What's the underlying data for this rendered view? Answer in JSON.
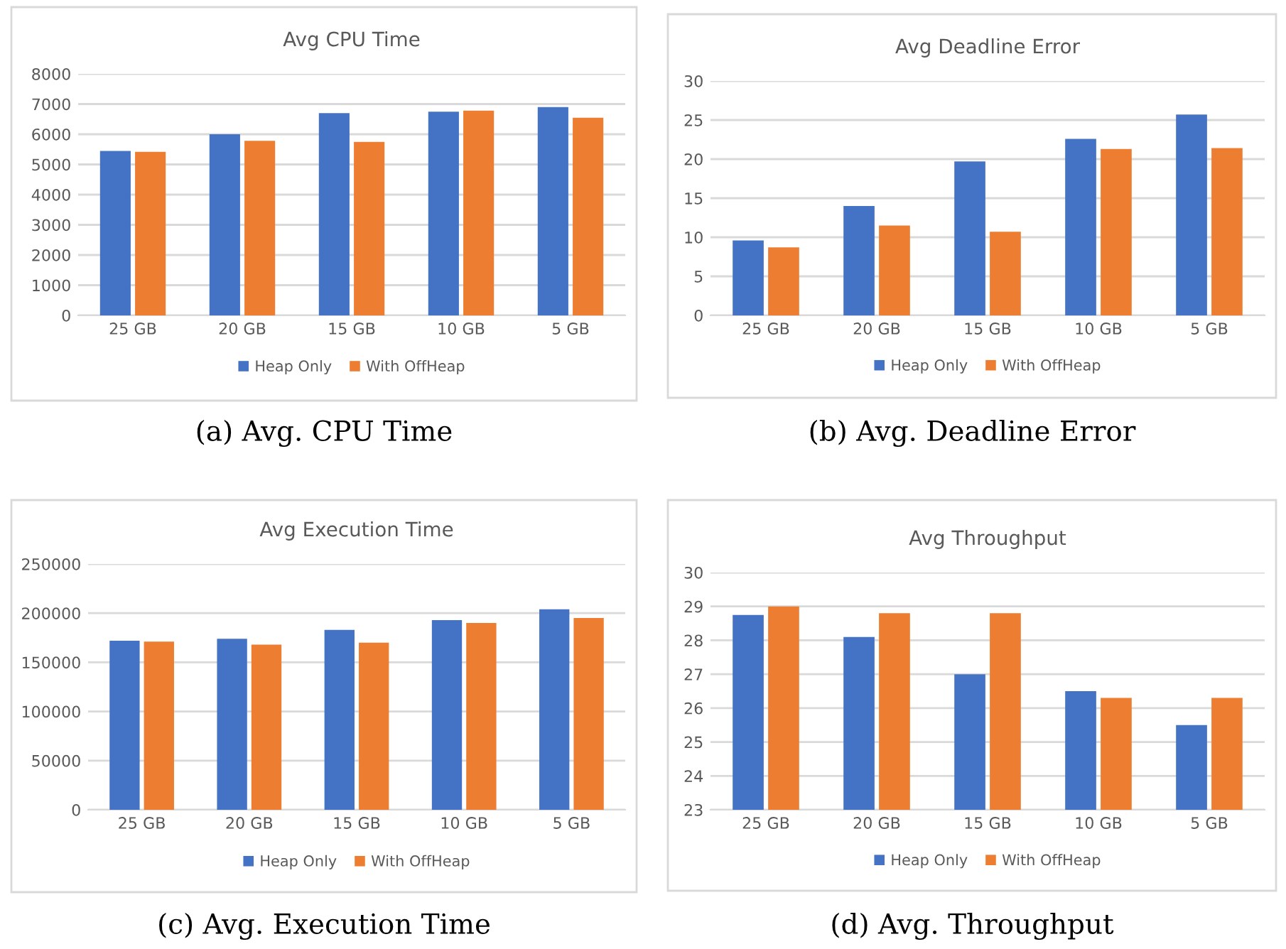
{
  "chart_data": [
    {
      "type": "bar",
      "title": "Avg CPU Time",
      "categories": [
        "25 GB",
        "20 GB",
        "15 GB",
        "10 GB",
        "5 GB"
      ],
      "series": [
        {
          "name": "Heap Only",
          "color": "#4472c4",
          "values": [
            5450,
            6000,
            6700,
            6750,
            6900
          ]
        },
        {
          "name": "With OffHeap",
          "color": "#ed7d31",
          "values": [
            5420,
            5780,
            5750,
            6780,
            6550
          ]
        }
      ],
      "ylim": [
        0,
        8000
      ],
      "yticks": [
        0,
        1000,
        2000,
        3000,
        4000,
        5000,
        6000,
        7000,
        8000
      ],
      "grid": "y",
      "legend": "bottom",
      "annotations": [
        "(a) Avg. CPU Time"
      ]
    },
    {
      "type": "bar",
      "title": "Avg Deadline Error",
      "categories": [
        "25 GB",
        "20 GB",
        "15 GB",
        "10 GB",
        "5 GB"
      ],
      "series": [
        {
          "name": "Heap Only",
          "color": "#4472c4",
          "values": [
            9.6,
            14,
            19.7,
            22.6,
            25.7
          ]
        },
        {
          "name": "With OffHeap",
          "color": "#ed7d31",
          "values": [
            8.7,
            11.5,
            10.7,
            21.3,
            21.4
          ]
        }
      ],
      "ylim": [
        0,
        30
      ],
      "yticks": [
        0,
        5,
        10,
        15,
        20,
        25,
        30
      ],
      "grid": "y",
      "legend": "bottom",
      "annotations": [
        "(b) Avg. Deadline Error"
      ]
    },
    {
      "type": "bar",
      "title": "Avg Execution Time",
      "categories": [
        "25 GB",
        "20 GB",
        "15 GB",
        "10 GB",
        "5 GB"
      ],
      "series": [
        {
          "name": "Heap Only",
          "color": "#4472c4",
          "values": [
            172000,
            174000,
            183000,
            193000,
            204000
          ]
        },
        {
          "name": "With OffHeap",
          "color": "#ed7d31",
          "values": [
            171000,
            168000,
            170000,
            190000,
            195000
          ]
        }
      ],
      "ylim": [
        0,
        250000
      ],
      "yticks": [
        0,
        50000,
        100000,
        150000,
        200000,
        250000
      ],
      "grid": "y",
      "legend": "bottom",
      "annotations": [
        "(c) Avg. Execution Time"
      ]
    },
    {
      "type": "bar",
      "title": "Avg Throughput",
      "categories": [
        "25 GB",
        "20 GB",
        "15 GB",
        "10 GB",
        "5 GB"
      ],
      "series": [
        {
          "name": "Heap Only",
          "color": "#4472c4",
          "values": [
            28.75,
            28.1,
            27,
            26.5,
            25.5
          ]
        },
        {
          "name": "With OffHeap",
          "color": "#ed7d31",
          "values": [
            29,
            28.8,
            28.8,
            26.3,
            26.3
          ]
        }
      ],
      "ylim": [
        23,
        30
      ],
      "yticks": [
        23,
        24,
        25,
        26,
        27,
        28,
        29,
        30
      ],
      "grid": "y",
      "legend": "bottom",
      "annotations": [
        "(d) Avg. Throughput"
      ]
    }
  ]
}
